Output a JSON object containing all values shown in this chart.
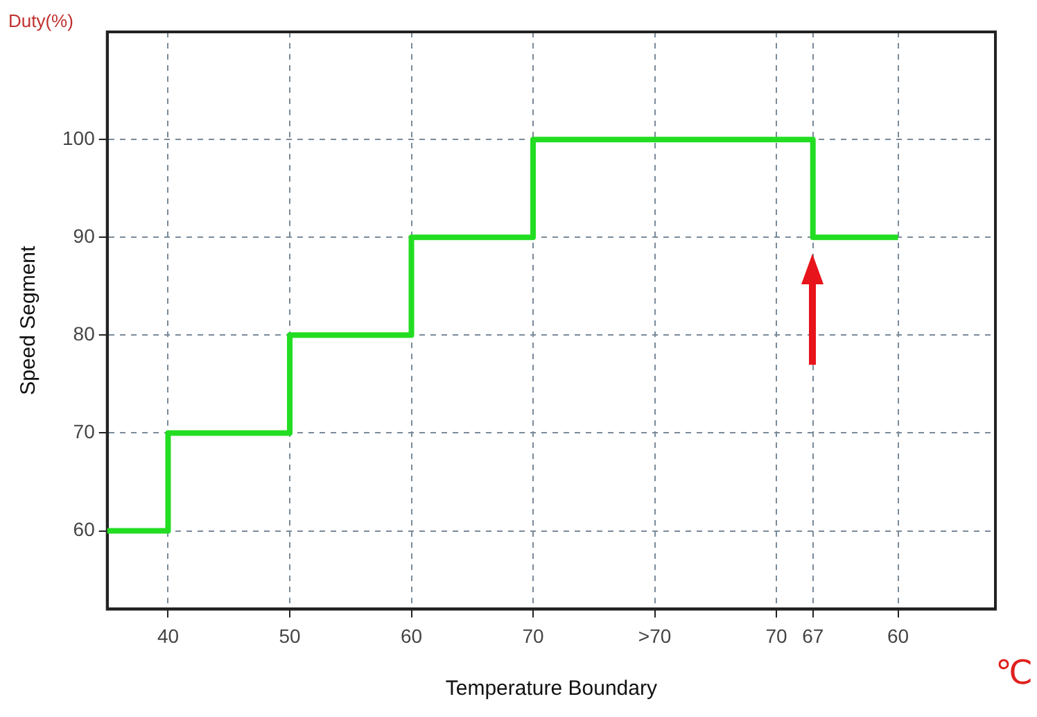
{
  "chart_data": {
    "type": "step",
    "xlabel": "Temperature Boundary",
    "ylabel": "Speed Segment",
    "annotations": [
      "Duty(%)",
      "℃"
    ],
    "categories": [
      null,
      null,
      null,
      null,
      null,
      "40",
      null,
      null,
      null,
      null,
      null,
      null,
      null,
      null,
      null,
      "50",
      null,
      null,
      null,
      null,
      null,
      null,
      null,
      null,
      null,
      "60",
      null,
      null,
      null,
      null,
      null,
      null,
      null,
      null,
      null,
      "70",
      null,
      null,
      null,
      null,
      null,
      null,
      null,
      null,
      null,
      ">70",
      null,
      null,
      null,
      null,
      null,
      null,
      null,
      null,
      null,
      "70",
      null,
      null,
      "67",
      null,
      null,
      null,
      null,
      null,
      null,
      "60",
      null,
      null,
      null,
      null,
      null,
      null,
      null,
      null
    ],
    "series": [
      {
        "color": "#22dd22",
        "values": [
          60,
          60,
          60,
          60,
          60,
          70,
          70,
          70,
          70,
          70,
          70,
          70,
          70,
          70,
          70,
          80,
          80,
          80,
          80,
          80,
          80,
          80,
          80,
          80,
          80,
          90,
          90,
          90,
          90,
          90,
          90,
          90,
          90,
          90,
          90,
          100,
          100,
          100,
          100,
          100,
          100,
          100,
          100,
          100,
          100,
          100,
          100,
          100,
          100,
          100,
          100,
          100,
          100,
          100,
          100,
          100,
          100,
          100,
          90,
          90,
          90,
          90,
          90,
          90,
          90,
          90,
          null,
          null,
          null,
          null,
          null,
          null,
          null,
          null
        ]
      }
    ],
    "ylim": [
      52,
      111
    ],
    "yticks": [
      60,
      70,
      80,
      90,
      100
    ],
    "grid": true,
    "legend": false,
    "marker": "none"
  }
}
